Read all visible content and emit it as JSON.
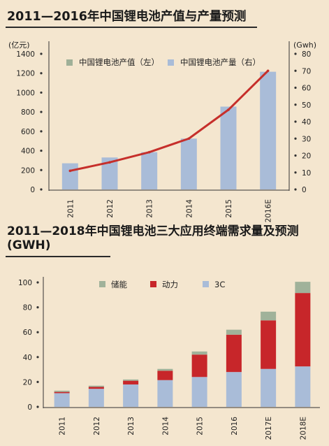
{
  "charts": {
    "top": {
      "title": "2011—2016年中国锂电池产值与产量预测"
    },
    "bottom": {
      "title": "2011—2018年中国锂电池三大应用终端需求量及预测(GWH)"
    }
  },
  "chart_data": [
    {
      "type": "bar",
      "title": "2011—2016年中国锂电池产值与产量预测",
      "categories": [
        "2011",
        "2012",
        "2013",
        "2014",
        "2015",
        "2016E"
      ],
      "y_left": {
        "unit": "(亿元)",
        "ylim": [
          0,
          1400
        ],
        "ticks": [
          0,
          200,
          400,
          600,
          800,
          1000,
          1200,
          1400
        ]
      },
      "y_right": {
        "unit": "(Gwh)",
        "ylim": [
          0,
          80
        ],
        "ticks": [
          0,
          10,
          20,
          30,
          40,
          50,
          60,
          70,
          80
        ]
      },
      "series": [
        {
          "name": "中国锂电池产值（左）",
          "type": "line",
          "axis": "right",
          "color": "#c62f2b",
          "values": [
            11,
            16,
            22,
            30,
            47,
            70
          ]
        },
        {
          "name": "中国锂电池产量（右）",
          "type": "bar",
          "axis": "left",
          "color": "#a9bcd8",
          "values": [
            270,
            330,
            385,
            525,
            855,
            1215
          ]
        }
      ],
      "legend": [
        {
          "name": "中国锂电池产值（左）",
          "color": "#9fb098"
        },
        {
          "name": "中国锂电池产量（右）",
          "color": "#a9bcd8"
        }
      ],
      "legend_position": "top"
    },
    {
      "type": "bar",
      "stacked": true,
      "title": "2011—2018年中国锂电池三大应用终端需求量及预测(GWH)",
      "categories": [
        "2011",
        "2012",
        "2013",
        "2014",
        "2015",
        "2016",
        "2017E",
        "2018E"
      ],
      "ylim": [
        0,
        100
      ],
      "ticks": [
        0,
        20,
        40,
        60,
        80,
        100
      ],
      "series": [
        {
          "name": "3C",
          "color": "#a9bcd8",
          "values": [
            11,
            14.5,
            18,
            21.5,
            24,
            28,
            30.5,
            32.5
          ]
        },
        {
          "name": "动力",
          "color": "#c7262a",
          "values": [
            1,
            1.5,
            3,
            7.5,
            18,
            30,
            39,
            59
          ]
        },
        {
          "name": "储能",
          "color": "#a0b29a",
          "values": [
            1,
            1,
            1,
            1.5,
            2.5,
            4,
            7,
            9
          ]
        }
      ],
      "legend_order": [
        "储能",
        "动力",
        "3C"
      ],
      "legend_position": "top"
    }
  ]
}
